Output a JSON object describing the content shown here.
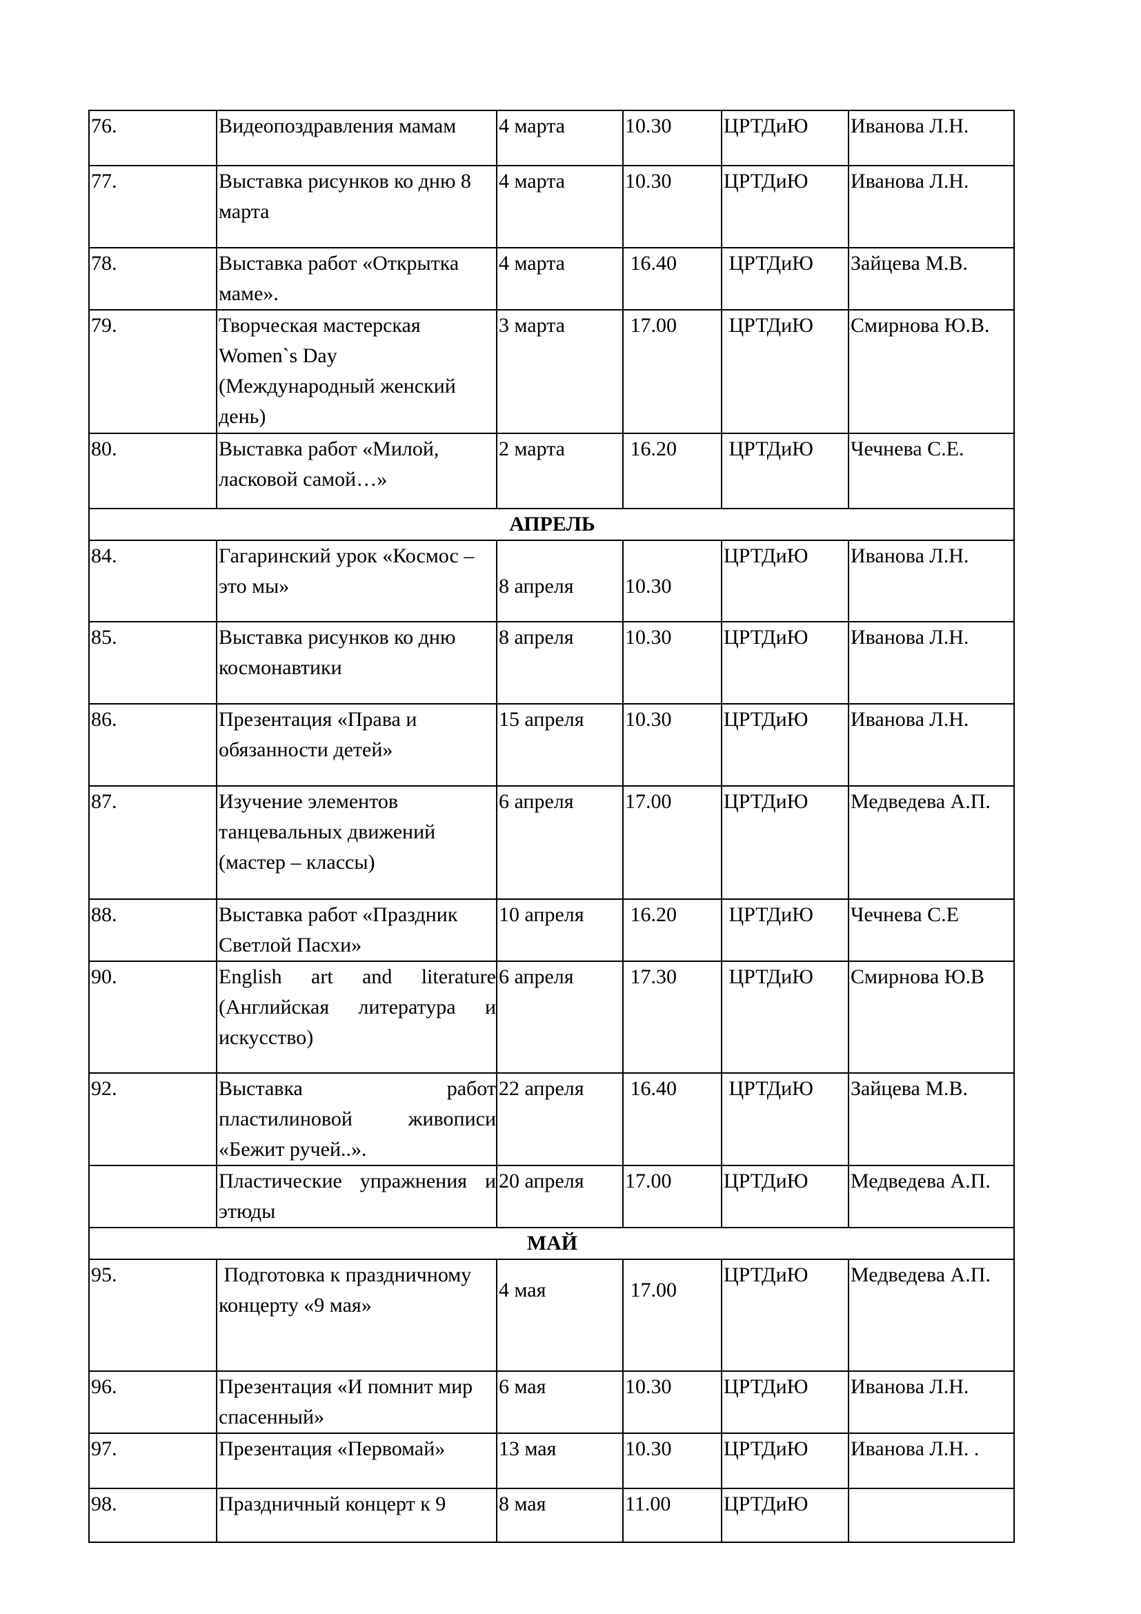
{
  "rows": [
    {
      "type": "item",
      "num": "76.",
      "title": "Видеопоздравления мамам",
      "date": "4 марта",
      "time": "10.30",
      "place": "ЦРТДиЮ",
      "resp": "Иванова Л.Н.",
      "h": 80
    },
    {
      "type": "item",
      "num": "77.",
      "title": "Выставка рисунков ко дню 8 марта",
      "date": "4 марта",
      "time": "10.30",
      "place": "ЦРТДиЮ",
      "resp": "Иванова Л.Н.",
      "h": 119
    },
    {
      "type": "item",
      "num": "78.",
      "title": "Выставка работ «Открытка маме».",
      "date": "4 марта",
      "time": " 16.40",
      "place": " ЦРТДиЮ",
      "resp": "Зайцева М.В.",
      "h": 80
    },
    {
      "type": "item",
      "num": "79.",
      "title": "Творческая мастерская Women`s Day (Международный женский день)",
      "date": "3 марта",
      "time": " 17.00",
      "place": " ЦРТДиЮ",
      "resp": "Смирнова Ю.В.",
      "h": 179
    },
    {
      "type": "item",
      "num": "80.",
      "title": "Выставка работ «Милой, ласковой самой…»",
      "date": "2 марта",
      "time": " 16.20",
      "place": " ЦРТДиЮ",
      "resp": "Чечнева С.Е.",
      "h": 109
    },
    {
      "type": "month",
      "label": "АПРЕЛЬ",
      "h": 43
    },
    {
      "type": "item",
      "num": "84.",
      "title": "Гагаринский урок «Космос – это мы»",
      "date": "8 апреля",
      "time": "10.30",
      "place": "ЦРТДиЮ",
      "resp": "Иванова Л.Н.",
      "h": 118,
      "dt": "low"
    },
    {
      "type": "item",
      "num": "85.",
      "title": "Выставка рисунков ко дню космонавтики",
      "date": "8 апреля",
      "time": "10.30",
      "place": "ЦРТДиЮ",
      "resp": "Иванова Л.Н.",
      "h": 119
    },
    {
      "type": "item",
      "num": "86.",
      "title": "Презентация «Права и обязанности детей»",
      "date": "15 апреля",
      "time": "10.30",
      "place": "ЦРТДиЮ",
      "resp": "Иванова Л.Н.",
      "h": 119
    },
    {
      "type": "item",
      "num": "87.",
      "title": "Изучение элементов танцевальных движений (мастер – классы)",
      "date": "6 апреля",
      "time": "17.00",
      "place": "ЦРТДиЮ",
      "resp": "Медведева А.П.",
      "h": 164
    },
    {
      "type": "item",
      "num": "88.",
      "title": "Выставка работ «Праздник Светлой Пасхи»",
      "date": "10 апреля",
      "time": " 16.20",
      "place": " ЦРТДиЮ",
      "resp": "Чечнева С.Е",
      "h": 80
    },
    {
      "type": "item",
      "num": "90.",
      "title": "English art and literature (Английская литература и искусство)",
      "date": "6 апреля",
      "time": " 17.30",
      "place": " ЦРТДиЮ",
      "resp": "Смирнова Ю.В",
      "h": 162,
      "just": true
    },
    {
      "type": "item",
      "num": "92.",
      "title": "Выставка работ пластилиновой живописи «Бежит ручей..».",
      "date": "22 апреля",
      "time": " 16.40",
      "place": " ЦРТДиЮ",
      "resp": "Зайцева М.В.",
      "h": 119,
      "just": true
    },
    {
      "type": "item",
      "num": "",
      "title": "Пластические упражнения и этюды",
      "date": "20 апреля",
      "time": "17.00",
      "place": "ЦРТДиЮ",
      "resp": "Медведева А.П.",
      "h": 79,
      "just": true
    },
    {
      "type": "month",
      "label": "МАЙ",
      "h": 44
    },
    {
      "type": "item",
      "num": "95.",
      "title": " Подготовка к праздничному концерту «9 мая»",
      "date": "4 мая",
      "time": " 17.00",
      "place": "ЦРТДиЮ",
      "resp": "Медведева А.П.",
      "h": 162,
      "dt": "mid"
    },
    {
      "type": "item",
      "num": "96.",
      "title": "Презентация «И помнит мир спасенный»",
      "date": "6 мая",
      "time": "10.30",
      "place": "ЦРТДиЮ",
      "resp": "Иванова Л.Н.",
      "h": 80
    },
    {
      "type": "item",
      "num": "97.",
      "title": "Презентация «Первомай»",
      "date": "13 мая",
      "time": "10.30",
      "place": "ЦРТДиЮ",
      "resp": "Иванова Л.Н. .",
      "h": 80
    },
    {
      "type": "item",
      "num": "98.",
      "title": "Праздничный концерт к 9",
      "date": "8 мая",
      "time": "11.00",
      "place": "ЦРТДиЮ",
      "resp": "",
      "h": 78
    }
  ]
}
